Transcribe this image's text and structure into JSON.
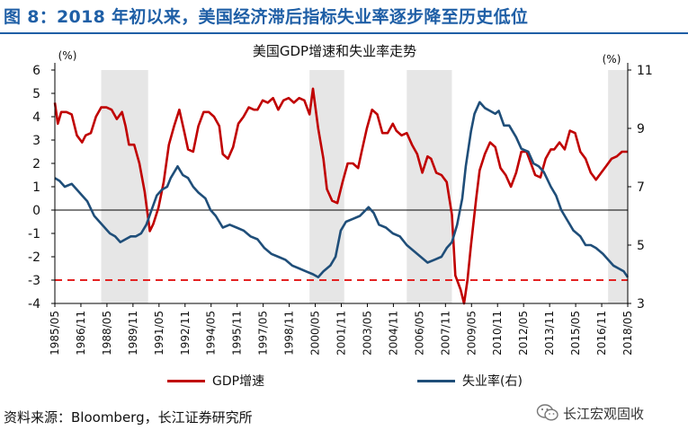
{
  "figure_title": "图 8：2018 年初以来，美国经济滞后指标失业率逐步降至历史低位",
  "source": "资料来源：Bloomberg，长江证券研究所",
  "watermark": {
    "text": "长江宏观固收",
    "icon": "wechat-icon"
  },
  "colors": {
    "title": "#1f5fa6",
    "gdp": "#c00000",
    "unemployment": "#1f4e79",
    "band": "#e6e6e6",
    "ref_line": "#e32222"
  },
  "chart_data": {
    "type": "line",
    "title": "美国GDP增速和失业率走势",
    "left_axis": {
      "unit": "(%)",
      "range": [
        -4,
        6
      ],
      "ticks": [
        -4,
        -3,
        -2,
        -1,
        0,
        1,
        2,
        3,
        4,
        5,
        6
      ]
    },
    "right_axis": {
      "unit": "(%)",
      "range": [
        3,
        11
      ],
      "ticks": [
        3,
        5,
        7,
        9,
        11
      ]
    },
    "x_range": [
      1985.33,
      2018.33
    ],
    "x_tick_labels": [
      "1985/05",
      "1986/11",
      "1988/05",
      "1989/11",
      "1991/05",
      "1992/11",
      "1994/05",
      "1995/11",
      "1997/05",
      "1998/11",
      "2000/05",
      "2001/11",
      "2003/05",
      "2004/11",
      "2006/05",
      "2007/11",
      "2009/05",
      "2010/11",
      "2012/05",
      "2013/11",
      "2015/05",
      "2016/11",
      "2018/05"
    ],
    "shaded_periods": [
      [
        1988.0,
        1990.7
      ],
      [
        2000.0,
        2002.0
      ],
      [
        2005.6,
        2008.2
      ],
      [
        2017.2,
        2018.33
      ]
    ],
    "reference_line": {
      "axis": "left",
      "value": -3,
      "style": "dashed"
    },
    "legend_position": "bottom",
    "series": [
      {
        "name": "GDP增速",
        "axis": "left",
        "points": [
          [
            1985.33,
            4.6
          ],
          [
            1985.5,
            3.7
          ],
          [
            1985.7,
            4.2
          ],
          [
            1986.0,
            4.2
          ],
          [
            1986.3,
            4.1
          ],
          [
            1986.6,
            3.2
          ],
          [
            1986.9,
            2.9
          ],
          [
            1987.1,
            3.2
          ],
          [
            1987.4,
            3.3
          ],
          [
            1987.7,
            4.0
          ],
          [
            1988.0,
            4.4
          ],
          [
            1988.3,
            4.4
          ],
          [
            1988.6,
            4.3
          ],
          [
            1988.9,
            3.9
          ],
          [
            1989.2,
            4.2
          ],
          [
            1989.4,
            3.6
          ],
          [
            1989.6,
            2.8
          ],
          [
            1989.9,
            2.8
          ],
          [
            1990.2,
            2.0
          ],
          [
            1990.5,
            0.8
          ],
          [
            1990.8,
            -0.9
          ],
          [
            1991.0,
            -0.6
          ],
          [
            1991.3,
            0.1
          ],
          [
            1991.6,
            1.2
          ],
          [
            1991.9,
            2.8
          ],
          [
            1992.2,
            3.6
          ],
          [
            1992.5,
            4.3
          ],
          [
            1992.8,
            3.3
          ],
          [
            1993.0,
            2.6
          ],
          [
            1993.3,
            2.5
          ],
          [
            1993.6,
            3.6
          ],
          [
            1993.9,
            4.2
          ],
          [
            1994.2,
            4.2
          ],
          [
            1994.5,
            4.0
          ],
          [
            1994.8,
            3.6
          ],
          [
            1995.0,
            2.4
          ],
          [
            1995.3,
            2.2
          ],
          [
            1995.6,
            2.7
          ],
          [
            1995.9,
            3.7
          ],
          [
            1996.2,
            4.0
          ],
          [
            1996.5,
            4.4
          ],
          [
            1996.8,
            4.3
          ],
          [
            1997.0,
            4.3
          ],
          [
            1997.3,
            4.7
          ],
          [
            1997.6,
            4.6
          ],
          [
            1997.9,
            4.8
          ],
          [
            1998.2,
            4.3
          ],
          [
            1998.5,
            4.7
          ],
          [
            1998.8,
            4.8
          ],
          [
            1999.1,
            4.6
          ],
          [
            1999.4,
            4.8
          ],
          [
            1999.7,
            4.7
          ],
          [
            2000.0,
            4.1
          ],
          [
            2000.2,
            5.2
          ],
          [
            2000.5,
            3.5
          ],
          [
            2000.8,
            2.2
          ],
          [
            2001.0,
            0.9
          ],
          [
            2001.3,
            0.4
          ],
          [
            2001.6,
            0.3
          ],
          [
            2001.9,
            1.2
          ],
          [
            2002.2,
            2.0
          ],
          [
            2002.5,
            2.0
          ],
          [
            2002.8,
            1.8
          ],
          [
            2003.0,
            2.5
          ],
          [
            2003.3,
            3.5
          ],
          [
            2003.6,
            4.3
          ],
          [
            2003.9,
            4.1
          ],
          [
            2004.2,
            3.3
          ],
          [
            2004.5,
            3.3
          ],
          [
            2004.8,
            3.7
          ],
          [
            2005.0,
            3.4
          ],
          [
            2005.3,
            3.2
          ],
          [
            2005.6,
            3.3
          ],
          [
            2005.9,
            2.8
          ],
          [
            2006.2,
            2.4
          ],
          [
            2006.5,
            1.6
          ],
          [
            2006.8,
            2.3
          ],
          [
            2007.0,
            2.2
          ],
          [
            2007.3,
            1.6
          ],
          [
            2007.6,
            1.5
          ],
          [
            2007.9,
            1.2
          ],
          [
            2008.2,
            -0.2
          ],
          [
            2008.4,
            -2.8
          ],
          [
            2008.7,
            -3.4
          ],
          [
            2008.9,
            -4.0
          ],
          [
            2009.1,
            -3.0
          ],
          [
            2009.3,
            -1.5
          ],
          [
            2009.6,
            0.5
          ],
          [
            2009.8,
            1.7
          ],
          [
            2010.1,
            2.4
          ],
          [
            2010.4,
            2.9
          ],
          [
            2010.7,
            2.7
          ],
          [
            2011.0,
            1.8
          ],
          [
            2011.3,
            1.5
          ],
          [
            2011.6,
            1.0
          ],
          [
            2011.9,
            1.6
          ],
          [
            2012.2,
            2.5
          ],
          [
            2012.5,
            2.5
          ],
          [
            2012.8,
            1.9
          ],
          [
            2013.0,
            1.5
          ],
          [
            2013.3,
            1.4
          ],
          [
            2013.6,
            2.2
          ],
          [
            2013.9,
            2.6
          ],
          [
            2014.1,
            2.6
          ],
          [
            2014.4,
            2.9
          ],
          [
            2014.7,
            2.6
          ],
          [
            2015.0,
            3.4
          ],
          [
            2015.3,
            3.3
          ],
          [
            2015.6,
            2.5
          ],
          [
            2015.9,
            2.2
          ],
          [
            2016.2,
            1.6
          ],
          [
            2016.5,
            1.3
          ],
          [
            2016.8,
            1.6
          ],
          [
            2017.1,
            1.9
          ],
          [
            2017.4,
            2.2
          ],
          [
            2017.7,
            2.3
          ],
          [
            2018.0,
            2.5
          ],
          [
            2018.33,
            2.5
          ]
        ]
      },
      {
        "name": "失业率(右)",
        "axis": "right",
        "points": [
          [
            1985.33,
            7.3
          ],
          [
            1985.6,
            7.2
          ],
          [
            1985.9,
            7.0
          ],
          [
            1986.3,
            7.1
          ],
          [
            1986.6,
            6.9
          ],
          [
            1986.9,
            6.7
          ],
          [
            1987.2,
            6.5
          ],
          [
            1987.6,
            6.0
          ],
          [
            1987.9,
            5.8
          ],
          [
            1988.2,
            5.6
          ],
          [
            1988.5,
            5.4
          ],
          [
            1988.8,
            5.3
          ],
          [
            1989.1,
            5.1
          ],
          [
            1989.4,
            5.2
          ],
          [
            1989.7,
            5.3
          ],
          [
            1990.0,
            5.3
          ],
          [
            1990.3,
            5.4
          ],
          [
            1990.6,
            5.7
          ],
          [
            1990.9,
            6.2
          ],
          [
            1991.2,
            6.7
          ],
          [
            1991.5,
            6.9
          ],
          [
            1991.8,
            7.0
          ],
          [
            1992.0,
            7.3
          ],
          [
            1992.4,
            7.7
          ],
          [
            1992.7,
            7.4
          ],
          [
            1993.0,
            7.3
          ],
          [
            1993.3,
            7.0
          ],
          [
            1993.6,
            6.8
          ],
          [
            1994.0,
            6.6
          ],
          [
            1994.3,
            6.2
          ],
          [
            1994.6,
            6.0
          ],
          [
            1995.0,
            5.6
          ],
          [
            1995.4,
            5.7
          ],
          [
            1995.8,
            5.6
          ],
          [
            1996.2,
            5.5
          ],
          [
            1996.6,
            5.3
          ],
          [
            1997.0,
            5.2
          ],
          [
            1997.4,
            4.9
          ],
          [
            1997.8,
            4.7
          ],
          [
            1998.2,
            4.6
          ],
          [
            1998.6,
            4.5
          ],
          [
            1999.0,
            4.3
          ],
          [
            1999.4,
            4.2
          ],
          [
            1999.8,
            4.1
          ],
          [
            2000.2,
            4.0
          ],
          [
            2000.5,
            3.9
          ],
          [
            2000.8,
            4.1
          ],
          [
            2001.2,
            4.3
          ],
          [
            2001.5,
            4.6
          ],
          [
            2001.8,
            5.5
          ],
          [
            2002.1,
            5.8
          ],
          [
            2002.5,
            5.9
          ],
          [
            2002.9,
            6.0
          ],
          [
            2003.4,
            6.3
          ],
          [
            2003.7,
            6.1
          ],
          [
            2004.0,
            5.7
          ],
          [
            2004.4,
            5.6
          ],
          [
            2004.8,
            5.4
          ],
          [
            2005.2,
            5.3
          ],
          [
            2005.6,
            5.0
          ],
          [
            2006.0,
            4.8
          ],
          [
            2006.4,
            4.6
          ],
          [
            2006.8,
            4.4
          ],
          [
            2007.2,
            4.5
          ],
          [
            2007.6,
            4.6
          ],
          [
            2007.9,
            4.9
          ],
          [
            2008.2,
            5.1
          ],
          [
            2008.5,
            5.7
          ],
          [
            2008.8,
            6.6
          ],
          [
            2009.0,
            7.7
          ],
          [
            2009.3,
            8.9
          ],
          [
            2009.5,
            9.5
          ],
          [
            2009.8,
            9.9
          ],
          [
            2010.1,
            9.7
          ],
          [
            2010.4,
            9.6
          ],
          [
            2010.7,
            9.5
          ],
          [
            2010.9,
            9.6
          ],
          [
            2011.2,
            9.1
          ],
          [
            2011.5,
            9.1
          ],
          [
            2011.9,
            8.7
          ],
          [
            2012.2,
            8.3
          ],
          [
            2012.6,
            8.2
          ],
          [
            2012.9,
            7.8
          ],
          [
            2013.2,
            7.7
          ],
          [
            2013.5,
            7.5
          ],
          [
            2013.9,
            7.0
          ],
          [
            2014.2,
            6.7
          ],
          [
            2014.5,
            6.2
          ],
          [
            2014.9,
            5.8
          ],
          [
            2015.2,
            5.5
          ],
          [
            2015.6,
            5.3
          ],
          [
            2015.9,
            5.0
          ],
          [
            2016.2,
            5.0
          ],
          [
            2016.5,
            4.9
          ],
          [
            2016.9,
            4.7
          ],
          [
            2017.2,
            4.5
          ],
          [
            2017.5,
            4.3
          ],
          [
            2017.8,
            4.2
          ],
          [
            2018.1,
            4.1
          ],
          [
            2018.33,
            3.9
          ]
        ]
      }
    ]
  }
}
